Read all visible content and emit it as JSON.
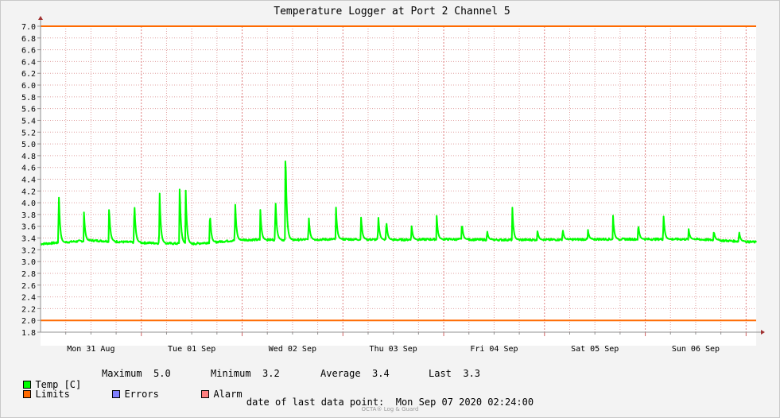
{
  "chart_data": {
    "type": "line",
    "title": "Temperature Logger at Port 2 Channel 5",
    "ylim": [
      1.8,
      7.0
    ],
    "y_ticks": [
      "1.8",
      "2.0",
      "2.2",
      "2.4",
      "2.6",
      "2.8",
      "3.0",
      "3.2",
      "3.4",
      "3.6",
      "3.8",
      "4.0",
      "4.2",
      "4.4",
      "4.6",
      "4.8",
      "5.0",
      "5.2",
      "5.4",
      "5.6",
      "5.8",
      "6.0",
      "6.2",
      "6.4",
      "6.6",
      "6.8",
      "7.0"
    ],
    "x_day_labels": [
      "Mon 31 Aug",
      "Tue 01 Sep",
      "Wed 02 Sep",
      "Thu 03 Sep",
      "Fri 04 Sep",
      "Sat 05 Sep",
      "Sun 06 Sep"
    ],
    "x_range_days": [
      0.0,
      7.1
    ],
    "grid": true,
    "limits": {
      "name": "Limits",
      "lower": 2.0,
      "upper": 7.0,
      "color": "#ff6a00"
    },
    "series": [
      {
        "name": "Temp [C]",
        "color": "#00ff00",
        "baseline": [
          [
            0.0,
            3.3
          ],
          [
            0.5,
            3.36
          ],
          [
            1.0,
            3.32
          ],
          [
            1.5,
            3.3
          ],
          [
            2.0,
            3.37
          ],
          [
            2.5,
            3.37
          ],
          [
            3.0,
            3.38
          ],
          [
            3.5,
            3.37
          ],
          [
            4.0,
            3.38
          ],
          [
            4.5,
            3.37
          ],
          [
            5.0,
            3.37
          ],
          [
            5.5,
            3.38
          ],
          [
            6.0,
            3.38
          ],
          [
            6.5,
            3.38
          ],
          [
            7.1,
            3.33
          ]
        ],
        "spikes": [
          [
            0.18,
            4.27
          ],
          [
            0.43,
            3.88
          ],
          [
            0.68,
            3.94
          ],
          [
            0.93,
            4.09
          ],
          [
            1.18,
            4.28
          ],
          [
            1.38,
            4.38
          ],
          [
            1.44,
            4.23
          ],
          [
            1.68,
            3.88
          ],
          [
            1.93,
            4.09
          ],
          [
            2.18,
            3.91
          ],
          [
            2.33,
            4.15
          ],
          [
            2.43,
            5.03
          ],
          [
            2.66,
            3.82
          ],
          [
            2.93,
            3.98
          ],
          [
            3.18,
            3.77
          ],
          [
            3.35,
            3.82
          ],
          [
            3.43,
            3.73
          ],
          [
            3.68,
            3.64
          ],
          [
            3.93,
            3.79
          ],
          [
            4.18,
            3.68
          ],
          [
            4.43,
            3.54
          ],
          [
            4.68,
            3.96
          ],
          [
            4.93,
            3.54
          ],
          [
            5.18,
            3.57
          ],
          [
            5.43,
            3.56
          ],
          [
            5.68,
            3.78
          ],
          [
            5.93,
            3.66
          ],
          [
            6.18,
            3.84
          ],
          [
            6.43,
            3.56
          ],
          [
            6.68,
            3.53
          ],
          [
            6.93,
            3.53
          ]
        ]
      }
    ]
  },
  "legend": {
    "temp_label": "Temp [C]",
    "limits_label": "Limits",
    "errors_label": "Errors",
    "alarm_label": "Alarm",
    "colors": {
      "temp": "#00ff00",
      "limits": "#ff6a00",
      "errors": "#7f7fff",
      "alarm": "#ff7f7f"
    }
  },
  "stats": {
    "maximum": "Maximum  5.0",
    "minimum": "Minimum  3.2",
    "average": "Average  3.4",
    "last": "Last  3.3"
  },
  "footer": {
    "last_point": "date of last data point:  Mon Sep 07 2020 02:24:00",
    "watermark": "OCTA® Log & Guard"
  }
}
